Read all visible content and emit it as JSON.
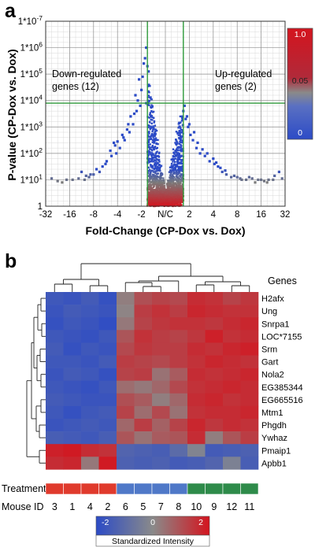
{
  "panel_a": {
    "label": "a",
    "annotations": {
      "down": [
        "Down-regulated",
        "genes (12)"
      ],
      "up": [
        "Up-regulated",
        "genes (2)"
      ]
    },
    "colorbar": {
      "max_label": "1.0",
      "mid_label": "0.05",
      "min_label": "0",
      "colors": [
        "#d4141e",
        "#7a7a7a",
        "#2c4bc6"
      ]
    },
    "line_color": "#2e9a3a"
  },
  "panel_b": {
    "label": "b",
    "genes_title": "Genes",
    "treatment_label": "Treatment",
    "mouse_id_label": "Mouse ID",
    "colorbar": {
      "title": "Standardized Intensity",
      "min_label": "-2",
      "mid_label": "0",
      "max_label": "2"
    },
    "treatment_colors": {
      "red": "#e03a2c",
      "blue": "#4f78c8",
      "green": "#2e8b4a"
    }
  },
  "chart_data": [
    {
      "type": "scatter",
      "title": "",
      "xlabel": "Fold-Change (CP-Dox vs. Dox)",
      "ylabel": "P-value (CP-Dox vs. Dox)",
      "x_ticks": [
        {
          "v": -32,
          "label": "-32"
        },
        {
          "v": -16,
          "label": "-16"
        },
        {
          "v": -8,
          "label": "-8"
        },
        {
          "v": -4,
          "label": "-4"
        },
        {
          "v": -2,
          "label": "-2"
        },
        {
          "v": 0,
          "label": "N/C"
        },
        {
          "v": 2,
          "label": "2"
        },
        {
          "v": 4,
          "label": "4"
        },
        {
          "v": 8,
          "label": "8"
        },
        {
          "v": 16,
          "label": "16"
        },
        {
          "v": 32,
          "label": "32"
        }
      ],
      "y_ticks": [
        {
          "v": 0,
          "base": "1",
          "exp": ""
        },
        {
          "v": 1,
          "base": "1*10",
          "exp": "1"
        },
        {
          "v": 2,
          "base": "1*10",
          "exp": "2"
        },
        {
          "v": 3,
          "base": "1*10",
          "exp": "3"
        },
        {
          "v": 4,
          "base": "1*10",
          "exp": "4"
        },
        {
          "v": 5,
          "base": "1*10",
          "exp": "5"
        },
        {
          "v": 6,
          "base": "1*10",
          "exp": "6"
        },
        {
          "v": 7,
          "base": "1*10",
          "exp": "-7"
        }
      ],
      "xlim": [
        -32,
        32
      ],
      "ylim": [
        0,
        7
      ],
      "thresholds": {
        "fold_change": [
          -1.5,
          1.5
        ],
        "p_value_log": 3.9
      },
      "grid": true,
      "points": [
        [
          -1.5,
          5.3
        ],
        [
          -1.7,
          5.6
        ],
        [
          -1.9,
          4.9
        ],
        [
          -2.0,
          4.4
        ],
        [
          -2.1,
          3.8
        ],
        [
          -1.6,
          3.9
        ],
        [
          -2.4,
          3.6
        ],
        [
          -2.7,
          3.1
        ],
        [
          -3.0,
          2.8
        ],
        [
          -3.4,
          2.5
        ],
        [
          -3.8,
          2.2
        ],
        [
          -4.2,
          2.0
        ],
        [
          -4.6,
          2.4
        ],
        [
          -5.0,
          1.9
        ],
        [
          -5.8,
          1.7
        ],
        [
          -6.5,
          1.5
        ],
        [
          -7.0,
          1.3
        ],
        [
          -8.0,
          1.2
        ],
        [
          -9.5,
          1.1
        ],
        [
          -11,
          1.0
        ],
        [
          -12,
          1.3
        ],
        [
          -1.4,
          5.1
        ],
        [
          -1.6,
          6.0
        ],
        [
          -1.8,
          5.4
        ],
        [
          -2.2,
          4.8
        ],
        [
          -2.5,
          4.2
        ],
        [
          -2.9,
          3.4
        ],
        [
          -3.2,
          2.9
        ],
        [
          -3.6,
          2.7
        ],
        [
          -4.4,
          2.3
        ],
        [
          -5.2,
          2.1
        ],
        [
          -6.0,
          1.6
        ],
        [
          -7.5,
          1.4
        ],
        [
          -9.0,
          1.2
        ],
        [
          -10.5,
          1.15
        ],
        [
          -13,
          1.05
        ],
        [
          -15,
          1.0
        ],
        [
          -2.3,
          4.0
        ],
        [
          -2.6,
          3.5
        ],
        [
          -3.1,
          3.1
        ],
        [
          -3.5,
          2.6
        ],
        [
          -4.0,
          2.45
        ],
        [
          1.5,
          3.6
        ],
        [
          1.7,
          3.3
        ],
        [
          1.9,
          3.0
        ],
        [
          2.1,
          2.7
        ],
        [
          2.3,
          2.5
        ],
        [
          2.6,
          2.2
        ],
        [
          2.9,
          2.0
        ],
        [
          3.3,
          1.9
        ],
        [
          3.7,
          1.7
        ],
        [
          4.2,
          1.6
        ],
        [
          4.8,
          1.5
        ],
        [
          5.5,
          1.3
        ],
        [
          6.2,
          1.2
        ],
        [
          7.0,
          1.1
        ],
        [
          8.0,
          1.1
        ],
        [
          9.5,
          1.0
        ],
        [
          11,
          1.0
        ],
        [
          13,
          1.05
        ],
        [
          15,
          1.0
        ],
        [
          18,
          0.95
        ],
        [
          21,
          1.0
        ],
        [
          25,
          1.15
        ],
        [
          28,
          1.3
        ],
        [
          30,
          1.05
        ],
        [
          1.6,
          3.8
        ],
        [
          1.8,
          3.4
        ],
        [
          2.0,
          3.1
        ],
        [
          2.4,
          2.8
        ],
        [
          2.7,
          2.4
        ],
        [
          3.1,
          2.15
        ],
        [
          3.5,
          2.0
        ],
        [
          4.0,
          1.8
        ],
        [
          4.5,
          1.65
        ],
        [
          5.2,
          1.45
        ],
        [
          6.0,
          1.35
        ],
        [
          7.5,
          1.15
        ],
        [
          9.0,
          1.05
        ],
        [
          12,
          1.1
        ],
        [
          14,
          0.9
        ],
        [
          16,
          1.0
        ],
        [
          20,
          0.9
        ],
        [
          24,
          1.0
        ],
        [
          -18,
          1.0
        ],
        [
          -21,
          0.9
        ],
        [
          -24,
          0.95
        ],
        [
          -28,
          1.05
        ]
      ]
    },
    {
      "type": "heatmap",
      "title": "",
      "rows": [
        "H2afx",
        "Ung",
        "Snrpa1",
        "LOC*7155",
        "Srm",
        "Gart",
        "Nola2",
        "EG385344",
        "EG665516",
        "Mtm1",
        "Phgdh",
        "Ywhaz",
        "Pmaip1",
        "Apbb1"
      ],
      "columns": [
        "3",
        "1",
        "4",
        "2",
        "6",
        "5",
        "7",
        "8",
        "10",
        "9",
        "12",
        "11"
      ],
      "treatment": [
        "red",
        "red",
        "red",
        "red",
        "blue",
        "blue",
        "blue",
        "blue",
        "green",
        "green",
        "green",
        "green"
      ],
      "values": [
        [
          -1.6,
          -1.7,
          -1.5,
          -1.8,
          0.2,
          1.0,
          1.2,
          1.1,
          1.6,
          1.5,
          1.2,
          1.4
        ],
        [
          -1.7,
          -1.5,
          -1.6,
          -1.7,
          0.1,
          1.3,
          1.5,
          1.3,
          1.7,
          1.6,
          1.5,
          1.5
        ],
        [
          -1.8,
          -1.6,
          -1.7,
          -1.9,
          0.3,
          1.2,
          1.4,
          1.5,
          1.5,
          1.4,
          1.6,
          1.7
        ],
        [
          -1.6,
          -1.7,
          -1.8,
          -1.6,
          0.9,
          1.5,
          1.3,
          1.2,
          1.4,
          1.8,
          1.5,
          1.6
        ],
        [
          -1.5,
          -1.8,
          -1.6,
          -1.7,
          1.1,
          1.4,
          1.3,
          1.3,
          1.6,
          1.5,
          1.7,
          1.8
        ],
        [
          -1.6,
          -1.6,
          -1.7,
          -1.5,
          1.3,
          1.2,
          1.1,
          1.3,
          1.5,
          1.7,
          1.6,
          1.5
        ],
        [
          -1.7,
          -1.5,
          -1.6,
          -1.8,
          1.2,
          1.3,
          0.4,
          0.8,
          1.6,
          1.5,
          1.6,
          1.7
        ],
        [
          -1.6,
          -1.7,
          -1.8,
          -1.6,
          0.5,
          0.3,
          0.6,
          1.1,
          1.5,
          1.6,
          1.7,
          1.6
        ],
        [
          -1.5,
          -1.6,
          -1.7,
          -1.7,
          1.0,
          0.8,
          0.2,
          0.6,
          1.6,
          1.7,
          1.5,
          1.6
        ],
        [
          -1.6,
          -1.8,
          -1.6,
          -1.5,
          1.2,
          0.5,
          1.1,
          0.4,
          1.5,
          1.6,
          1.6,
          1.7
        ],
        [
          -1.7,
          -1.6,
          -1.5,
          -1.6,
          0.6,
          1.3,
          0.7,
          1.2,
          1.7,
          1.4,
          1.6,
          1.5
        ],
        [
          -1.4,
          -1.5,
          -1.6,
          -1.4,
          0.9,
          0.4,
          0.8,
          0.9,
          1.6,
          0.2,
          0.9,
          1.3
        ],
        [
          1.8,
          1.9,
          1.6,
          1.5,
          -1.2,
          -1.3,
          -1.4,
          -1.0,
          -0.2,
          -1.5,
          -1.4,
          -1.3
        ],
        [
          1.6,
          1.7,
          0.3,
          1.9,
          -1.3,
          -1.4,
          -1.3,
          -1.5,
          -1.4,
          -1.2,
          -0.3,
          -1.4
        ]
      ],
      "color_range": [
        -2,
        2
      ]
    }
  ]
}
